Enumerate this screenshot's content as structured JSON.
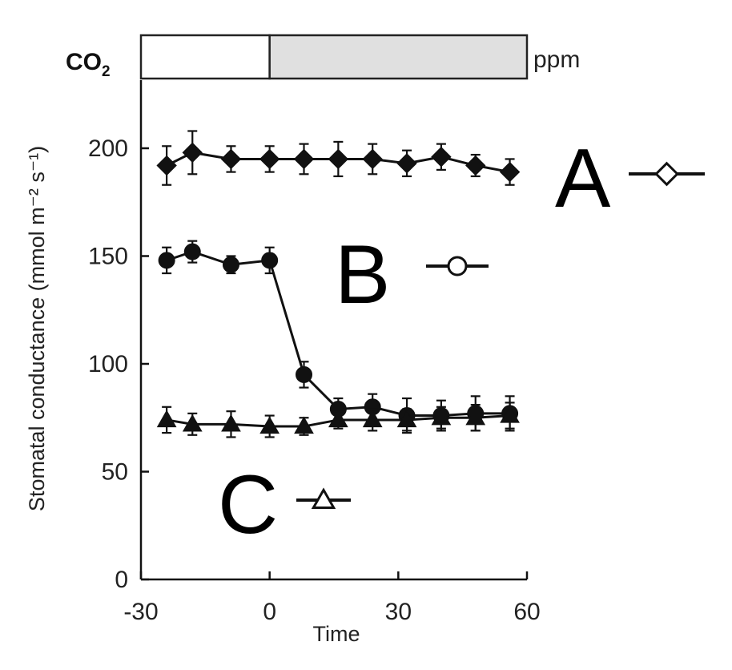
{
  "chart_data": {
    "type": "line",
    "xlabel": "Time",
    "ylabel": "Stomatal conductance (mmol m⁻² s⁻¹)",
    "xlim": [
      -30,
      60
    ],
    "ylim": [
      0,
      200
    ],
    "xticks": [
      "-30",
      "0",
      "30",
      "60"
    ],
    "yticks": [
      "0",
      "50",
      "100",
      "150",
      "200"
    ],
    "x": [
      -24,
      -18,
      -9,
      0,
      8,
      16,
      24,
      32,
      40,
      48,
      56
    ],
    "series": [
      {
        "name": "A",
        "marker": "diamond",
        "values": [
          192,
          198,
          195,
          195,
          195,
          195,
          195,
          193,
          196,
          192,
          189
        ],
        "errors": [
          9,
          10,
          6,
          6,
          7,
          8,
          7,
          6,
          6,
          5,
          6
        ]
      },
      {
        "name": "B",
        "marker": "circle",
        "values": [
          148,
          152,
          146,
          148,
          95,
          79,
          80,
          76,
          76,
          77,
          77
        ],
        "errors": [
          6,
          5,
          4,
          6,
          6,
          5,
          6,
          8,
          7,
          8,
          8
        ]
      },
      {
        "name": "C",
        "marker": "triangle",
        "values": [
          74,
          72,
          72,
          71,
          71,
          74,
          74,
          74,
          75,
          75,
          76
        ],
        "errors": [
          6,
          5,
          6,
          5,
          4,
          4,
          5,
          5,
          5,
          6,
          6
        ]
      }
    ],
    "legend_placement": "inline-right",
    "grid": false
  },
  "co2_bar": {
    "label": "CO",
    "label_sub": "2",
    "unit": "ppm",
    "segments": [
      {
        "x_start": -30,
        "x_end": 0,
        "color": "#ffffff"
      },
      {
        "x_start": 0,
        "x_end": 60,
        "color": "#e0e0e0"
      }
    ]
  }
}
